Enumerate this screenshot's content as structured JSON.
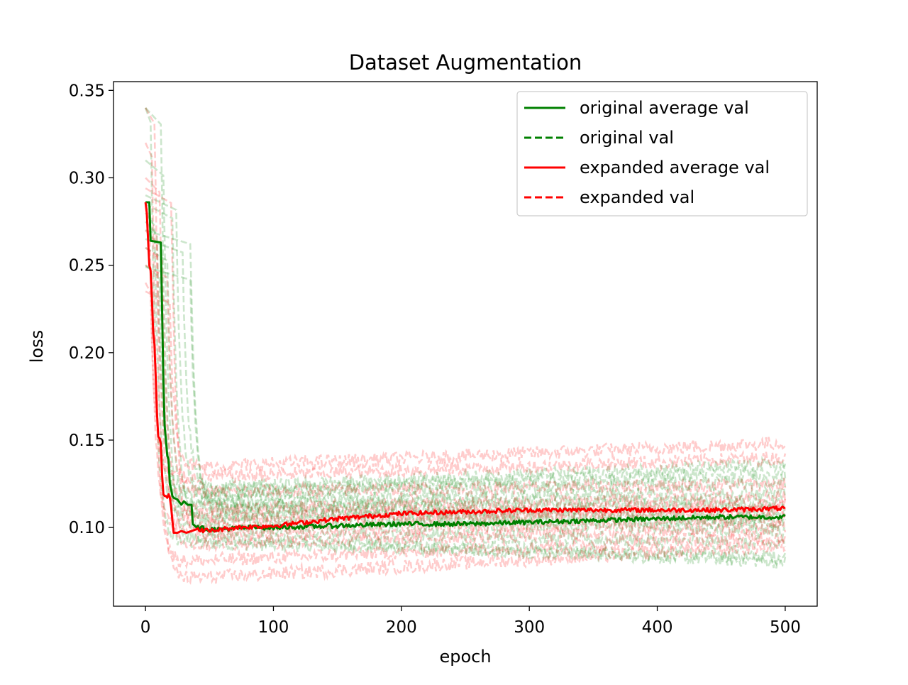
{
  "chart_data": {
    "type": "line",
    "title": "Dataset Augmentation",
    "xlabel": "epoch",
    "ylabel": "loss",
    "xlim": [
      -25,
      525
    ],
    "ylim": [
      0.055,
      0.355
    ],
    "xticks": [
      0,
      100,
      200,
      300,
      400,
      500
    ],
    "yticks": [
      0.1,
      0.15,
      0.2,
      0.25,
      0.3,
      0.35
    ],
    "xtick_labels": [
      "0",
      "100",
      "200",
      "300",
      "400",
      "500"
    ],
    "ytick_labels": [
      "0.10",
      "0.15",
      "0.20",
      "0.25",
      "0.30",
      "0.35"
    ],
    "grid": false,
    "legend_position": "upper right",
    "colors": {
      "original": "#008000",
      "expanded": "#ff0000"
    },
    "series": [
      {
        "name": "original average val",
        "style": "solid",
        "color": "#008000",
        "points": [
          [
            0,
            0.286
          ],
          [
            3,
            0.286
          ],
          [
            4,
            0.264
          ],
          [
            12,
            0.263
          ],
          [
            13,
            0.225
          ],
          [
            14,
            0.185
          ],
          [
            15,
            0.158
          ],
          [
            16,
            0.15
          ],
          [
            17,
            0.141
          ],
          [
            18,
            0.139
          ],
          [
            19,
            0.125
          ],
          [
            20,
            0.122
          ],
          [
            21,
            0.118
          ],
          [
            22,
            0.117
          ],
          [
            25,
            0.116
          ],
          [
            28,
            0.113
          ],
          [
            30,
            0.115
          ],
          [
            33,
            0.113
          ],
          [
            36,
            0.113
          ],
          [
            37,
            0.102
          ],
          [
            40,
            0.1
          ],
          [
            50,
            0.099
          ],
          [
            60,
            0.099
          ],
          [
            80,
            0.1
          ],
          [
            100,
            0.1
          ],
          [
            150,
            0.101
          ],
          [
            200,
            0.102
          ],
          [
            250,
            0.102
          ],
          [
            300,
            0.103
          ],
          [
            350,
            0.104
          ],
          [
            400,
            0.105
          ],
          [
            450,
            0.106
          ],
          [
            500,
            0.106
          ]
        ]
      },
      {
        "name": "original val",
        "style": "dashed",
        "color": "#008000",
        "alpha": 0.2,
        "runs": [
          {
            "start": 0.34,
            "drop_epoch": 5,
            "settle": 0.092,
            "end": 0.083
          },
          {
            "start": 0.34,
            "drop_epoch": 13,
            "settle": 0.095,
            "end": 0.08
          },
          {
            "start": 0.31,
            "drop_epoch": 15,
            "settle": 0.1,
            "end": 0.09
          },
          {
            "start": 0.285,
            "drop_epoch": 22,
            "settle": 0.105,
            "end": 0.098
          },
          {
            "start": 0.28,
            "drop_epoch": 8,
            "settle": 0.108,
            "end": 0.102
          },
          {
            "start": 0.27,
            "drop_epoch": 36,
            "settle": 0.11,
            "end": 0.105
          },
          {
            "start": 0.249,
            "drop_epoch": 36,
            "settle": 0.112,
            "end": 0.11
          },
          {
            "start": 0.26,
            "drop_epoch": 18,
            "settle": 0.113,
            "end": 0.115
          },
          {
            "start": 0.25,
            "drop_epoch": 12,
            "settle": 0.115,
            "end": 0.12
          },
          {
            "start": 0.29,
            "drop_epoch": 25,
            "settle": 0.118,
            "end": 0.127
          },
          {
            "start": 0.275,
            "drop_epoch": 10,
            "settle": 0.12,
            "end": 0.132
          },
          {
            "start": 0.265,
            "drop_epoch": 30,
            "settle": 0.122,
            "end": 0.137
          }
        ]
      },
      {
        "name": "expanded average val",
        "style": "solid",
        "color": "#ff0000",
        "points": [
          [
            0,
            0.286
          ],
          [
            1,
            0.28
          ],
          [
            2,
            0.265
          ],
          [
            3,
            0.25
          ],
          [
            4,
            0.247
          ],
          [
            5,
            0.232
          ],
          [
            6,
            0.212
          ],
          [
            7,
            0.205
          ],
          [
            8,
            0.186
          ],
          [
            9,
            0.165
          ],
          [
            10,
            0.152
          ],
          [
            11,
            0.151
          ],
          [
            12,
            0.148
          ],
          [
            13,
            0.13
          ],
          [
            14,
            0.119
          ],
          [
            15,
            0.118
          ],
          [
            16,
            0.118
          ],
          [
            17,
            0.117
          ],
          [
            18,
            0.119
          ],
          [
            19,
            0.117
          ],
          [
            20,
            0.112
          ],
          [
            21,
            0.104
          ],
          [
            22,
            0.097
          ],
          [
            25,
            0.097
          ],
          [
            28,
            0.098
          ],
          [
            32,
            0.097
          ],
          [
            40,
            0.099
          ],
          [
            50,
            0.098
          ],
          [
            70,
            0.1
          ],
          [
            100,
            0.101
          ],
          [
            150,
            0.105
          ],
          [
            200,
            0.108
          ],
          [
            250,
            0.109
          ],
          [
            300,
            0.11
          ],
          [
            350,
            0.11
          ],
          [
            400,
            0.11
          ],
          [
            450,
            0.11
          ],
          [
            500,
            0.111
          ]
        ]
      },
      {
        "name": "expanded val",
        "style": "dashed",
        "color": "#ff0000",
        "alpha": 0.2,
        "runs": [
          {
            "start": 0.34,
            "drop_epoch": 8,
            "settle": 0.07,
            "end": 0.09
          },
          {
            "start": 0.32,
            "drop_epoch": 6,
            "settle": 0.08,
            "end": 0.095
          },
          {
            "start": 0.3,
            "drop_epoch": 12,
            "settle": 0.09,
            "end": 0.1
          },
          {
            "start": 0.294,
            "drop_epoch": 21,
            "settle": 0.095,
            "end": 0.105
          },
          {
            "start": 0.285,
            "drop_epoch": 4,
            "settle": 0.1,
            "end": 0.11
          },
          {
            "start": 0.27,
            "drop_epoch": 10,
            "settle": 0.105,
            "end": 0.113
          },
          {
            "start": 0.26,
            "drop_epoch": 14,
            "settle": 0.11,
            "end": 0.118
          },
          {
            "start": 0.25,
            "drop_epoch": 18,
            "settle": 0.12,
            "end": 0.125
          },
          {
            "start": 0.24,
            "drop_epoch": 5,
            "settle": 0.128,
            "end": 0.14
          },
          {
            "start": 0.235,
            "drop_epoch": 20,
            "settle": 0.134,
            "end": 0.149
          }
        ]
      }
    ],
    "legend": [
      {
        "label": "original average val",
        "color": "#008000",
        "style": "solid"
      },
      {
        "label": "original val",
        "color": "#008000",
        "style": "dashed"
      },
      {
        "label": "expanded average val",
        "color": "#ff0000",
        "style": "solid"
      },
      {
        "label": "expanded val",
        "color": "#ff0000",
        "style": "dashed"
      }
    ]
  }
}
